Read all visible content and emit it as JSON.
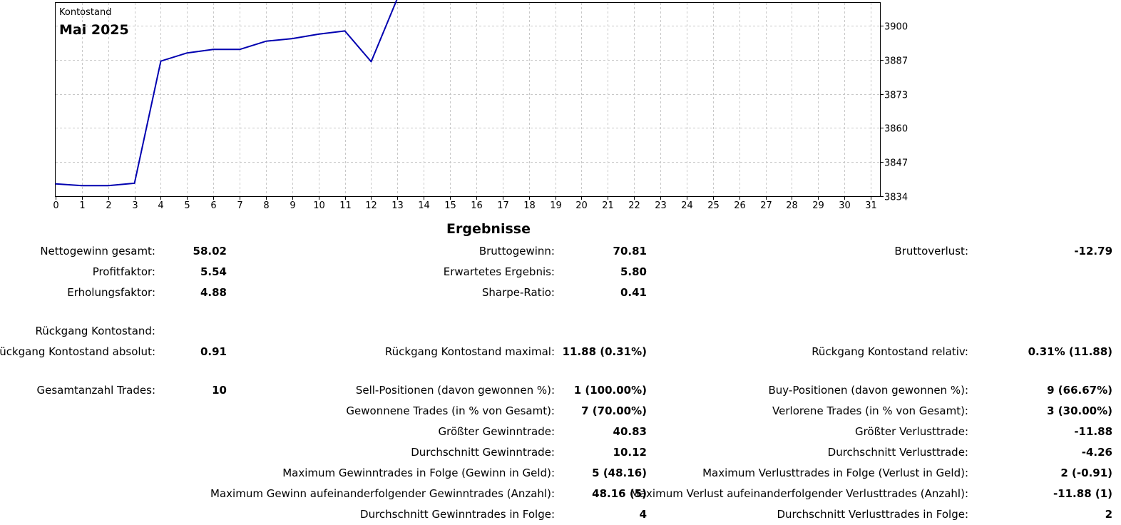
{
  "chart_data": {
    "type": "line",
    "title": "Kontostand",
    "subtitle": "Mai 2025",
    "x_ticks": [
      "0",
      "1",
      "2",
      "3",
      "4",
      "5",
      "6",
      "7",
      "8",
      "9",
      "10",
      "11",
      "12",
      "13",
      "14",
      "15",
      "16",
      "17",
      "18",
      "19",
      "20",
      "21",
      "22",
      "23",
      "24",
      "25",
      "26",
      "27",
      "28",
      "29",
      "30",
      "31"
    ],
    "y_ticks": [
      "3900",
      "3887",
      "3873",
      "3860",
      "3847",
      "3834"
    ],
    "xlim": [
      0,
      31.35
    ],
    "ylim": [
      3834,
      3900
    ],
    "grid": true,
    "series": [
      {
        "color": "#0000b0",
        "x": [
          0,
          1,
          2,
          3,
          4,
          5,
          6,
          7,
          8,
          9,
          10,
          11,
          12,
          13,
          14
        ],
        "y": [
          3838.2,
          3837.6,
          3837.6,
          3838.4,
          3880.1,
          3882.9,
          3884.1,
          3884.1,
          3886.9,
          3887.8,
          3889.3,
          3890.4,
          3879.9,
          3901.6,
          3902.0
        ]
      }
    ]
  },
  "results": {
    "heading": "Ergebnisse",
    "rows": [
      {
        "top": 343,
        "cells": [
          {
            "label": "Nettogewinn gesamt:",
            "value": "58.02"
          },
          {
            "label": "Bruttogewinn:",
            "value": "70.81"
          },
          {
            "label": "Bruttoverlust:",
            "value": "-12.79"
          }
        ]
      },
      {
        "top": 372,
        "cells": [
          {
            "label": "Profitfaktor:",
            "value": "5.54"
          },
          {
            "label": "Erwartetes Ergebnis:",
            "value": "5.80"
          },
          null
        ]
      },
      {
        "top": 401,
        "cells": [
          {
            "label": "Erholungsfaktor:",
            "value": "4.88"
          },
          {
            "label": "Sharpe-Ratio:",
            "value": "0.41"
          },
          null
        ]
      },
      {
        "top": 455,
        "cells": [
          {
            "label": "Rückgang Kontostand:",
            "value": ""
          },
          null,
          null
        ]
      },
      {
        "top": 484,
        "cells": [
          {
            "label": "Rückgang Kontostand absolut:",
            "value": "0.91"
          },
          {
            "label": "Rückgang Kontostand maximal:",
            "value": "11.88 (0.31%)"
          },
          {
            "label": "Rückgang Kontostand relativ:",
            "value": "0.31% (11.88)"
          }
        ]
      },
      {
        "top": 538,
        "cells": [
          {
            "label": "Gesamtanzahl Trades:",
            "value": "10"
          },
          {
            "label": "Sell-Positionen (davon gewonnen %):",
            "value": "1 (100.00%)"
          },
          {
            "label": "Buy-Positionen (davon gewonnen %):",
            "value": "9 (66.67%)"
          }
        ]
      },
      {
        "top": 567,
        "cells": [
          null,
          {
            "label": "Gewonnene Trades (in % von Gesamt):",
            "value": "7 (70.00%)"
          },
          {
            "label": "Verlorene Trades (in % von Gesamt):",
            "value": "3 (30.00%)"
          }
        ]
      },
      {
        "top": 596,
        "cells": [
          null,
          {
            "label": "Größter Gewinntrade:",
            "value": "40.83"
          },
          {
            "label": "Größter Verlusttrade:",
            "value": "-11.88"
          }
        ]
      },
      {
        "top": 625,
        "cells": [
          null,
          {
            "label": "Durchschnitt Gewinntrade:",
            "value": "10.12"
          },
          {
            "label": "Durchschnitt Verlusttrade:",
            "value": "-4.26"
          }
        ]
      },
      {
        "top": 654,
        "cells": [
          null,
          {
            "label": "Maximum Gewinntrades in Folge (Gewinn in Geld):",
            "value": "5 (48.16)"
          },
          {
            "label": "Maximum Verlusttrades in Folge (Verlust in Geld):",
            "value": "2 (-0.91)"
          }
        ]
      },
      {
        "top": 683,
        "cells": [
          null,
          {
            "label": "Maximum Gewinn aufeinanderfolgender Gewinntrades (Anzahl):",
            "value": "48.16 (5)"
          },
          {
            "label": "Maximum Verlust aufeinanderfolgender Verlusttrades (Anzahl):",
            "value": "-11.88 (1)"
          }
        ]
      },
      {
        "top": 712,
        "cells": [
          null,
          {
            "label": "Durchschnitt Gewinntrades in Folge:",
            "value": "4"
          },
          {
            "label": "Durchschnitt Verlusttrades in Folge:",
            "value": "2"
          }
        ]
      }
    ]
  }
}
